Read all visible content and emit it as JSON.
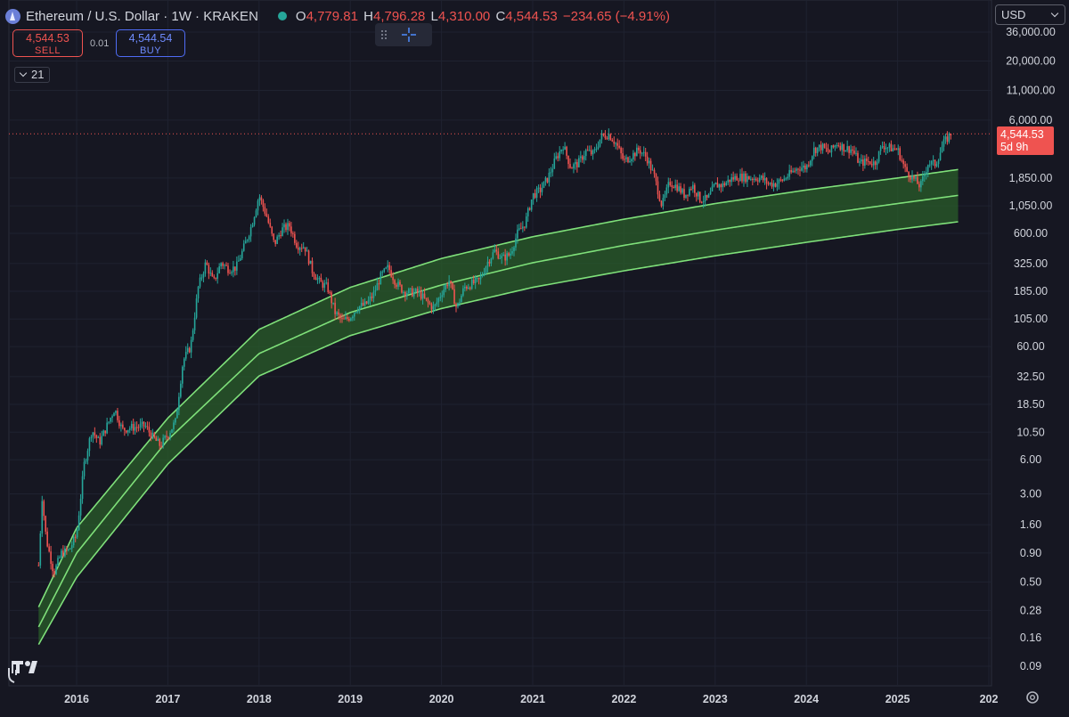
{
  "header": {
    "title": "Ethereum / U.S. Dollar · 1W · KRAKEN",
    "open_label": "O",
    "open": "4,779.81",
    "high_label": "H",
    "high": "4,796.28",
    "low_label": "L",
    "low": "4,310.00",
    "close_label": "C",
    "close": "4,544.53",
    "change": "−234.65 (−4.91%)"
  },
  "trade": {
    "sell_price": "4,544.53",
    "sell_label": "SELL",
    "spread": "0.01",
    "buy_price": "4,544.54",
    "buy_label": "BUY"
  },
  "interval": {
    "value": "21"
  },
  "currency": {
    "value": "USD"
  },
  "price_tag": {
    "price": "4,544.53",
    "countdown": "5d 9h"
  },
  "colors": {
    "up": "#26a69a",
    "down": "#ef5350",
    "band_line": "#7fe07a",
    "band_fill": "#2a5e2a"
  },
  "icons": [
    "ethereum-logo-icon",
    "market-status-dot-icon",
    "chevron-down-icon",
    "drag-handle-icon",
    "crosshair-icon",
    "settings-gear-icon",
    "tradingview-logo-icon"
  ],
  "chart_data": {
    "type": "candlestick",
    "scale": "log",
    "x_ticks": [
      "2016",
      "2017",
      "2018",
      "2019",
      "2020",
      "2021",
      "2022",
      "2023",
      "2024",
      "2025",
      "202"
    ],
    "y_ticks": [
      "36,000.00",
      "20,000.00",
      "11,000.00",
      "6,000.00",
      "1,850.00",
      "1,050.00",
      "600.00",
      "325.00",
      "185.00",
      "105.00",
      "60.00",
      "32.50",
      "18.50",
      "10.50",
      "6.00",
      "3.00",
      "1.60",
      "0.90",
      "0.50",
      "0.28",
      "0.16",
      "0.09"
    ],
    "y_tick_values": [
      36000,
      20000,
      11000,
      6000,
      1850,
      1050,
      600,
      325,
      185,
      105,
      60,
      32.5,
      18.5,
      10.5,
      6,
      3,
      1.6,
      0.9,
      0.5,
      0.28,
      0.16,
      0.09
    ],
    "x_range": [
      "2015-08",
      "2025-09"
    ],
    "last_price": 4544.53,
    "price_path": [
      [
        "2015-08",
        0.7
      ],
      [
        "2015-08-15",
        2.8
      ],
      [
        "2015-09",
        1.2
      ],
      [
        "2015-10",
        0.6
      ],
      [
        "2015-11",
        0.9
      ],
      [
        "2015-12",
        0.95
      ],
      [
        "2016-01",
        1.3
      ],
      [
        "2016-02",
        5.5
      ],
      [
        "2016-03",
        11
      ],
      [
        "2016-04",
        8.5
      ],
      [
        "2016-06",
        17
      ],
      [
        "2016-07",
        11
      ],
      [
        "2016-08",
        11.5
      ],
      [
        "2016-10",
        12
      ],
      [
        "2016-11",
        9.5
      ],
      [
        "2016-12",
        8
      ],
      [
        "2017-01",
        10
      ],
      [
        "2017-02",
        13
      ],
      [
        "2017-03",
        45
      ],
      [
        "2017-04",
        60
      ],
      [
        "2017-05",
        200
      ],
      [
        "2017-06",
        330
      ],
      [
        "2017-07",
        220
      ],
      [
        "2017-08",
        330
      ],
      [
        "2017-09",
        290
      ],
      [
        "2017-10",
        300
      ],
      [
        "2017-11",
        450
      ],
      [
        "2017-12",
        700
      ],
      [
        "2018-01",
        1300
      ],
      [
        "2018-02",
        850
      ],
      [
        "2018-03",
        480
      ],
      [
        "2018-04",
        650
      ],
      [
        "2018-05",
        700
      ],
      [
        "2018-06",
        470
      ],
      [
        "2018-07",
        460
      ],
      [
        "2018-08",
        280
      ],
      [
        "2018-09",
        220
      ],
      [
        "2018-10",
        200
      ],
      [
        "2018-11",
        120
      ],
      [
        "2018-12",
        100
      ],
      [
        "2019-01",
        110
      ],
      [
        "2019-02",
        135
      ],
      [
        "2019-03",
        140
      ],
      [
        "2019-04",
        170
      ],
      [
        "2019-05",
        250
      ],
      [
        "2019-06",
        300
      ],
      [
        "2019-07",
        220
      ],
      [
        "2019-08",
        185
      ],
      [
        "2019-09",
        180
      ],
      [
        "2019-10",
        180
      ],
      [
        "2019-11",
        150
      ],
      [
        "2019-12",
        130
      ],
      [
        "2020-01",
        180
      ],
      [
        "2020-02",
        230
      ],
      [
        "2020-03",
        130
      ],
      [
        "2020-04",
        200
      ],
      [
        "2020-05",
        215
      ],
      [
        "2020-06",
        230
      ],
      [
        "2020-07",
        330
      ],
      [
        "2020-08",
        420
      ],
      [
        "2020-09",
        360
      ],
      [
        "2020-10",
        390
      ],
      [
        "2020-11",
        600
      ],
      [
        "2020-12",
        740
      ],
      [
        "2021-01",
        1300
      ],
      [
        "2021-02",
        1450
      ],
      [
        "2021-03",
        1850
      ],
      [
        "2021-04",
        2700
      ],
      [
        "2021-05",
        3600
      ],
      [
        "2021-06",
        2300
      ],
      [
        "2021-07",
        2500
      ],
      [
        "2021-08",
        3200
      ],
      [
        "2021-09",
        3000
      ],
      [
        "2021-10",
        4300
      ],
      [
        "2021-11",
        4500
      ],
      [
        "2021-12",
        3700
      ],
      [
        "2022-01",
        2600
      ],
      [
        "2022-02",
        2900
      ],
      [
        "2022-03",
        3300
      ],
      [
        "2022-04",
        2800
      ],
      [
        "2022-05",
        1900
      ],
      [
        "2022-06",
        1050
      ],
      [
        "2022-07",
        1700
      ],
      [
        "2022-08",
        1550
      ],
      [
        "2022-09",
        1300
      ],
      [
        "2022-10",
        1600
      ],
      [
        "2022-11",
        1200
      ],
      [
        "2022-12",
        1200
      ],
      [
        "2023-01",
        1600
      ],
      [
        "2023-02",
        1600
      ],
      [
        "2023-03",
        1800
      ],
      [
        "2023-04",
        1900
      ],
      [
        "2023-05",
        1870
      ],
      [
        "2023-06",
        1850
      ],
      [
        "2023-07",
        1850
      ],
      [
        "2023-08",
        1650
      ],
      [
        "2023-09",
        1650
      ],
      [
        "2023-10",
        1800
      ],
      [
        "2023-11",
        2050
      ],
      [
        "2023-12",
        2300
      ],
      [
        "2024-01",
        2300
      ],
      [
        "2024-02",
        3300
      ],
      [
        "2024-03",
        3500
      ],
      [
        "2024-04",
        3100
      ],
      [
        "2024-05",
        3750
      ],
      [
        "2024-06",
        3400
      ],
      [
        "2024-07",
        3300
      ],
      [
        "2024-08",
        2500
      ],
      [
        "2024-09",
        2600
      ],
      [
        "2024-10",
        2500
      ],
      [
        "2024-11",
        3600
      ],
      [
        "2024-12",
        3400
      ],
      [
        "2025-01",
        3300
      ],
      [
        "2025-02",
        2200
      ],
      [
        "2025-03",
        1850
      ],
      [
        "2025-04",
        1550
      ],
      [
        "2025-05",
        2500
      ],
      [
        "2025-06",
        2450
      ],
      [
        "2025-07",
        3700
      ],
      [
        "2025-08",
        4544
      ]
    ],
    "band": {
      "mid": [
        [
          "2015-08",
          0.2
        ],
        [
          "2016-01",
          0.9
        ],
        [
          "2017-01",
          9
        ],
        [
          "2018-01",
          52
        ],
        [
          "2019-01",
          120
        ],
        [
          "2020-01",
          210
        ],
        [
          "2021-01",
          330
        ],
        [
          "2022-01",
          470
        ],
        [
          "2023-01",
          640
        ],
        [
          "2024-01",
          850
        ],
        [
          "2025-01",
          1100
        ],
        [
          "2025-09",
          1300
        ]
      ],
      "upper": [
        [
          "2015-08",
          0.3
        ],
        [
          "2016-01",
          1.5
        ],
        [
          "2017-01",
          14
        ],
        [
          "2018-01",
          85
        ],
        [
          "2019-01",
          200
        ],
        [
          "2020-01",
          360
        ],
        [
          "2021-01",
          560
        ],
        [
          "2022-01",
          800
        ],
        [
          "2023-01",
          1100
        ],
        [
          "2024-01",
          1450
        ],
        [
          "2025-01",
          1850
        ],
        [
          "2025-09",
          2200
        ]
      ],
      "lower": [
        [
          "2015-08",
          0.14
        ],
        [
          "2016-01",
          0.55
        ],
        [
          "2017-01",
          5.5
        ],
        [
          "2018-01",
          33
        ],
        [
          "2019-01",
          75
        ],
        [
          "2020-01",
          130
        ],
        [
          "2021-01",
          200
        ],
        [
          "2022-01",
          280
        ],
        [
          "2023-01",
          380
        ],
        [
          "2024-01",
          500
        ],
        [
          "2025-01",
          650
        ],
        [
          "2025-09",
          760
        ]
      ]
    }
  }
}
